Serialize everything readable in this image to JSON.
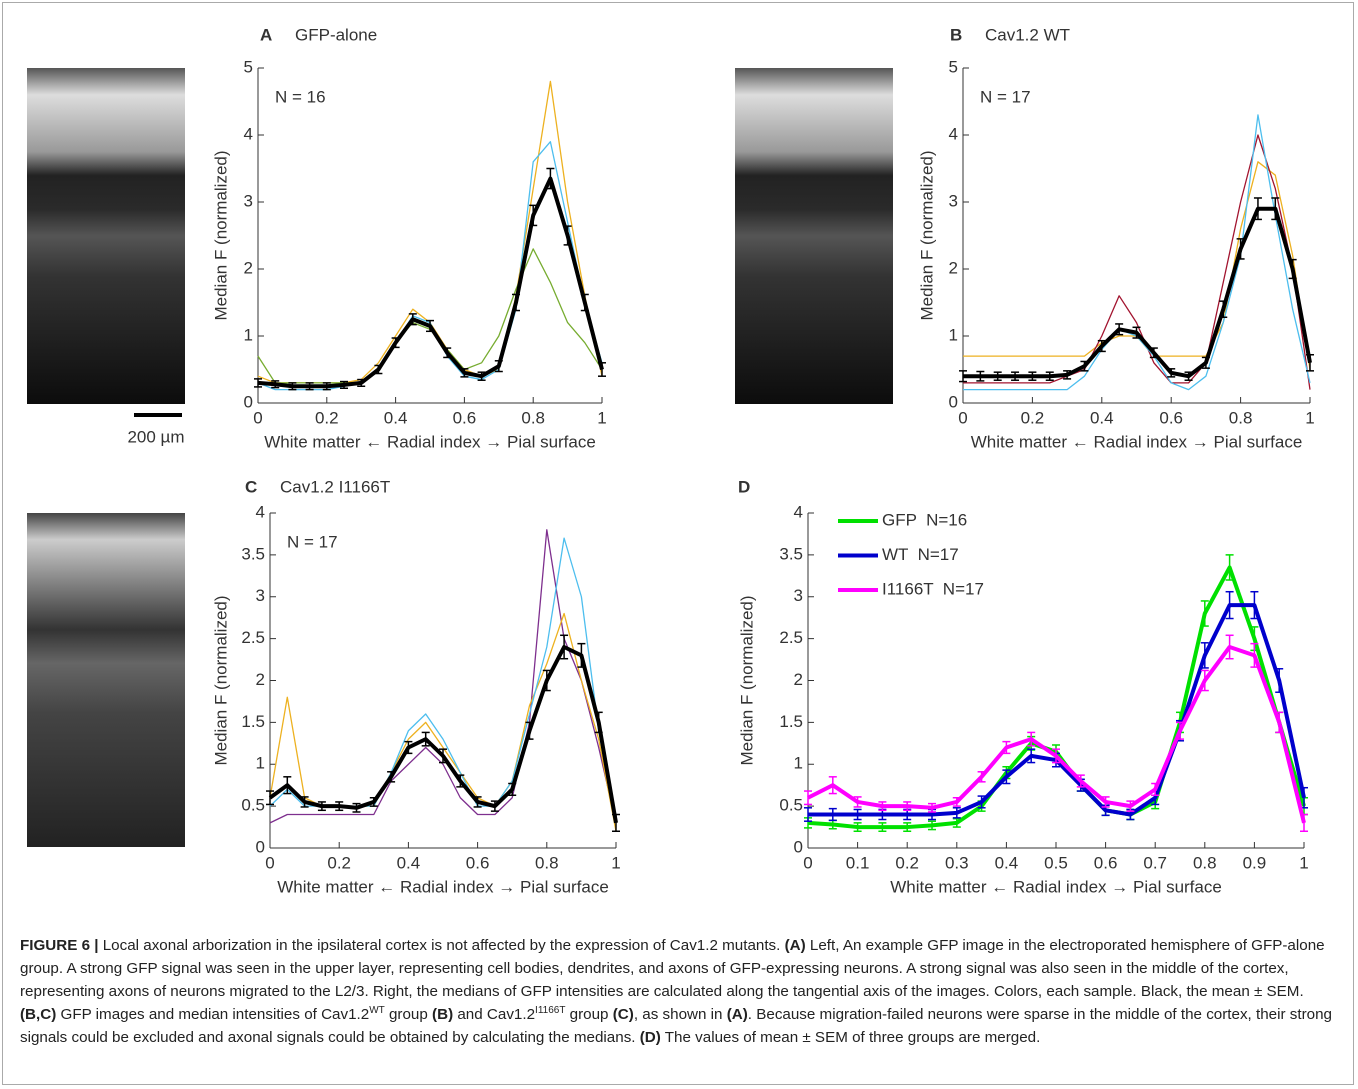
{
  "chart_data": [
    {
      "type": "line",
      "panel": "A",
      "title": "GFP-alone",
      "annotation": "N = 16",
      "xlabel": "White matter ← Radial index → Pial surface",
      "ylabel": "Median F (normalized)",
      "x": [
        0,
        0.05,
        0.1,
        0.15,
        0.2,
        0.25,
        0.3,
        0.35,
        0.4,
        0.45,
        0.5,
        0.55,
        0.6,
        0.65,
        0.7,
        0.75,
        0.8,
        0.85,
        0.9,
        0.95,
        1
      ],
      "xlim": [
        0,
        1
      ],
      "xticks": [
        0,
        0.2,
        0.4,
        0.6,
        0.8,
        1
      ],
      "ylim": [
        0,
        5
      ],
      "yticks": [
        0,
        1,
        2,
        3,
        4,
        5
      ],
      "series": [
        {
          "color": "#edb120",
          "values": [
            0.4,
            0.3,
            0.3,
            0.3,
            0.3,
            0.3,
            0.35,
            0.6,
            1.0,
            1.4,
            1.2,
            0.8,
            0.5,
            0.4,
            0.5,
            1.6,
            3.2,
            4.8,
            3.0,
            1.6,
            0.4
          ]
        },
        {
          "color": "#77ac30",
          "values": [
            0.7,
            0.3,
            0.3,
            0.3,
            0.3,
            0.3,
            0.3,
            0.5,
            0.9,
            1.2,
            1.1,
            0.8,
            0.5,
            0.6,
            1.0,
            1.7,
            2.3,
            1.8,
            1.2,
            0.9,
            0.5
          ]
        },
        {
          "color": "#4dbeee",
          "values": [
            0.3,
            0.2,
            0.2,
            0.2,
            0.2,
            0.25,
            0.3,
            0.5,
            0.9,
            1.3,
            1.2,
            0.7,
            0.4,
            0.35,
            0.5,
            1.4,
            3.6,
            3.9,
            2.7,
            1.5,
            0.6
          ]
        },
        {
          "color": "#000000",
          "values": [
            0.3,
            0.28,
            0.25,
            0.25,
            0.25,
            0.27,
            0.3,
            0.5,
            0.9,
            1.25,
            1.15,
            0.75,
            0.45,
            0.4,
            0.55,
            1.5,
            2.8,
            3.35,
            2.5,
            1.5,
            0.5
          ],
          "errors": [
            0.06,
            0.05,
            0.05,
            0.05,
            0.05,
            0.05,
            0.05,
            0.06,
            0.07,
            0.08,
            0.08,
            0.07,
            0.06,
            0.06,
            0.08,
            0.12,
            0.15,
            0.15,
            0.14,
            0.12,
            0.1
          ]
        }
      ]
    },
    {
      "type": "line",
      "panel": "B",
      "title": "Cav1.2 WT",
      "annotation": "N = 17",
      "xlabel": "White matter ← Radial index → Pial surface",
      "ylabel": "Median F (normalized)",
      "x": [
        0,
        0.05,
        0.1,
        0.15,
        0.2,
        0.25,
        0.3,
        0.35,
        0.4,
        0.45,
        0.5,
        0.55,
        0.6,
        0.65,
        0.7,
        0.75,
        0.8,
        0.85,
        0.9,
        0.95,
        1
      ],
      "xlim": [
        0,
        1
      ],
      "xticks": [
        0,
        0.2,
        0.4,
        0.6,
        0.8,
        1
      ],
      "ylim": [
        0,
        5
      ],
      "yticks": [
        0,
        1,
        2,
        3,
        4,
        5
      ],
      "series": [
        {
          "color": "#edb120",
          "values": [
            0.7,
            0.7,
            0.7,
            0.7,
            0.7,
            0.7,
            0.7,
            0.7,
            0.9,
            1.0,
            1.0,
            0.7,
            0.7,
            0.7,
            0.7,
            1.2,
            2.6,
            3.6,
            3.4,
            2.2,
            0.5
          ]
        },
        {
          "color": "#a2142f",
          "values": [
            0.3,
            0.3,
            0.3,
            0.3,
            0.3,
            0.3,
            0.4,
            0.5,
            1.0,
            1.6,
            1.2,
            0.6,
            0.3,
            0.3,
            0.6,
            1.8,
            3.0,
            4.0,
            3.2,
            2.0,
            0.2
          ]
        },
        {
          "color": "#4dbeee",
          "values": [
            0.2,
            0.2,
            0.2,
            0.2,
            0.2,
            0.2,
            0.2,
            0.4,
            0.8,
            1.1,
            1.0,
            0.7,
            0.3,
            0.2,
            0.4,
            1.2,
            2.2,
            4.3,
            2.8,
            1.4,
            0.3
          ]
        },
        {
          "color": "#000000",
          "values": [
            0.4,
            0.4,
            0.4,
            0.4,
            0.4,
            0.4,
            0.42,
            0.55,
            0.85,
            1.1,
            1.05,
            0.75,
            0.45,
            0.4,
            0.6,
            1.4,
            2.3,
            2.9,
            2.9,
            2.0,
            0.6
          ],
          "errors": [
            0.08,
            0.07,
            0.06,
            0.06,
            0.06,
            0.06,
            0.06,
            0.07,
            0.08,
            0.08,
            0.08,
            0.07,
            0.06,
            0.06,
            0.08,
            0.12,
            0.15,
            0.16,
            0.16,
            0.14,
            0.12
          ]
        }
      ]
    },
    {
      "type": "line",
      "panel": "C",
      "title": "Cav1.2 I1166T",
      "annotation": "N = 17",
      "xlabel": "White matter ← Radial index → Pial surface",
      "ylabel": "Median F (normalized)",
      "x": [
        0,
        0.05,
        0.1,
        0.15,
        0.2,
        0.25,
        0.3,
        0.35,
        0.4,
        0.45,
        0.5,
        0.55,
        0.6,
        0.65,
        0.7,
        0.75,
        0.8,
        0.85,
        0.9,
        0.95,
        1
      ],
      "xlim": [
        0,
        1
      ],
      "xticks": [
        0,
        0.2,
        0.4,
        0.6,
        0.8,
        1
      ],
      "ylim": [
        0,
        4
      ],
      "yticks": [
        0,
        0.5,
        1,
        1.5,
        2,
        2.5,
        3,
        3.5,
        4
      ],
      "series": [
        {
          "color": "#7e2f8e",
          "values": [
            0.3,
            0.4,
            0.4,
            0.4,
            0.4,
            0.4,
            0.4,
            0.8,
            1.0,
            1.2,
            1.0,
            0.6,
            0.4,
            0.4,
            0.6,
            1.5,
            3.8,
            2.5,
            2.0,
            1.2,
            0.3
          ]
        },
        {
          "color": "#edb120",
          "values": [
            0.6,
            1.8,
            0.6,
            0.5,
            0.5,
            0.5,
            0.5,
            0.9,
            1.3,
            1.5,
            1.2,
            0.9,
            0.6,
            0.5,
            0.8,
            1.7,
            2.2,
            2.8,
            2.0,
            1.3,
            0.2
          ]
        },
        {
          "color": "#4dbeee",
          "values": [
            0.5,
            0.7,
            0.5,
            0.5,
            0.5,
            0.5,
            0.5,
            0.9,
            1.4,
            1.6,
            1.3,
            0.9,
            0.5,
            0.5,
            0.8,
            1.6,
            2.4,
            3.7,
            3.0,
            1.4,
            0.3
          ]
        },
        {
          "color": "#000000",
          "values": [
            0.6,
            0.75,
            0.55,
            0.5,
            0.5,
            0.48,
            0.55,
            0.85,
            1.2,
            1.3,
            1.1,
            0.8,
            0.55,
            0.5,
            0.7,
            1.4,
            2.0,
            2.4,
            2.3,
            1.5,
            0.3
          ],
          "errors": [
            0.08,
            0.1,
            0.06,
            0.05,
            0.05,
            0.05,
            0.05,
            0.06,
            0.07,
            0.08,
            0.08,
            0.07,
            0.06,
            0.06,
            0.07,
            0.1,
            0.12,
            0.14,
            0.14,
            0.12,
            0.1
          ]
        }
      ]
    },
    {
      "type": "line",
      "panel": "D",
      "legend": "upper left",
      "xlabel": "White matter ← Radial index → Pial surface",
      "ylabel": "Median F (normalized)",
      "x": [
        0,
        0.05,
        0.1,
        0.15,
        0.2,
        0.25,
        0.3,
        0.35,
        0.4,
        0.45,
        0.5,
        0.55,
        0.6,
        0.65,
        0.7,
        0.75,
        0.8,
        0.85,
        0.9,
        0.95,
        1
      ],
      "xlim": [
        0,
        1
      ],
      "xticks": [
        0,
        0.1,
        0.2,
        0.3,
        0.4,
        0.5,
        0.6,
        0.7,
        0.8,
        0.9,
        1
      ],
      "ylim": [
        0,
        4
      ],
      "yticks": [
        0,
        0.5,
        1,
        1.5,
        2,
        2.5,
        3,
        3.5,
        4
      ],
      "series": [
        {
          "name": "GFP  N=16",
          "color": "#00e000",
          "values": [
            0.3,
            0.28,
            0.25,
            0.25,
            0.25,
            0.27,
            0.3,
            0.5,
            0.9,
            1.25,
            1.15,
            0.75,
            0.45,
            0.4,
            0.55,
            1.5,
            2.8,
            3.35,
            2.5,
            1.5,
            0.5
          ],
          "errors": [
            0.06,
            0.05,
            0.05,
            0.05,
            0.05,
            0.05,
            0.05,
            0.06,
            0.07,
            0.08,
            0.08,
            0.07,
            0.06,
            0.06,
            0.08,
            0.12,
            0.15,
            0.15,
            0.14,
            0.12,
            0.1
          ]
        },
        {
          "name": "WT  N=17",
          "color": "#0000cc",
          "values": [
            0.4,
            0.4,
            0.4,
            0.4,
            0.4,
            0.4,
            0.42,
            0.55,
            0.85,
            1.1,
            1.05,
            0.75,
            0.45,
            0.4,
            0.6,
            1.4,
            2.3,
            2.9,
            2.9,
            2.0,
            0.6
          ],
          "errors": [
            0.08,
            0.07,
            0.06,
            0.06,
            0.06,
            0.06,
            0.06,
            0.07,
            0.08,
            0.08,
            0.08,
            0.07,
            0.06,
            0.06,
            0.08,
            0.12,
            0.15,
            0.16,
            0.16,
            0.14,
            0.12
          ]
        },
        {
          "name": "I1166T  N=17",
          "color": "#ff00ff",
          "values": [
            0.6,
            0.75,
            0.55,
            0.5,
            0.5,
            0.48,
            0.55,
            0.85,
            1.2,
            1.3,
            1.1,
            0.8,
            0.55,
            0.5,
            0.7,
            1.4,
            2.0,
            2.4,
            2.3,
            1.5,
            0.3
          ],
          "errors": [
            0.08,
            0.1,
            0.06,
            0.05,
            0.05,
            0.05,
            0.05,
            0.06,
            0.07,
            0.08,
            0.08,
            0.07,
            0.06,
            0.06,
            0.07,
            0.1,
            0.12,
            0.14,
            0.14,
            0.12,
            0.1
          ]
        }
      ]
    }
  ],
  "scale_bar": "200 µm",
  "caption": [
    {
      "text": "FIGURE 6 |",
      "bold": true
    },
    {
      "text": " Local axonal arborization in the ipsilateral cortex is not affected by the expression of Cav1.2 mutants. "
    },
    {
      "text": "(A)",
      "bold": true
    },
    {
      "text": " Left, An example GFP image in the electroporated hemisphere of GFP-alone group. A strong GFP signal was seen in the upper layer, representing cell bodies, dendrites, and axons of GFP-expressing neurons. A strong signal was also seen in the middle of the cortex, representing axons of neurons migrated to the L2/3. Right, the medians of GFP intensities are calculated along the tangential axis of the images. Colors, each sample. Black, the mean ± SEM. "
    },
    {
      "text": "(B,C)",
      "bold": true
    },
    {
      "text": " GFP images and median intensities of Cav1.2"
    },
    {
      "text": "WT",
      "sup": true
    },
    {
      "text": " group "
    },
    {
      "text": "(B)",
      "bold": true
    },
    {
      "text": " and Cav1.2"
    },
    {
      "text": "I1166T",
      "sup": true
    },
    {
      "text": " group "
    },
    {
      "text": "(C)",
      "bold": true
    },
    {
      "text": ", as shown in "
    },
    {
      "text": "(A)",
      "bold": true
    },
    {
      "text": ". Because migration-failed neurons were sparse in the middle of the cortex, their strong signals could be excluded and axonal signals could be obtained by calculating the medians. "
    },
    {
      "text": "(D)",
      "bold": true
    },
    {
      "text": " The values of mean ± SEM of three groups are merged."
    }
  ]
}
